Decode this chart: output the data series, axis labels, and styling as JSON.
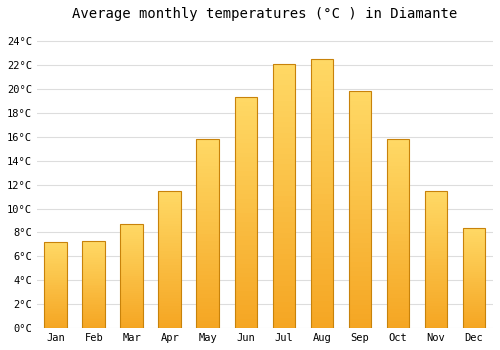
{
  "title": "Average monthly temperatures (°C ) in Diamante",
  "months": [
    "Jan",
    "Feb",
    "Mar",
    "Apr",
    "May",
    "Jun",
    "Jul",
    "Aug",
    "Sep",
    "Oct",
    "Nov",
    "Dec"
  ],
  "values": [
    7.2,
    7.3,
    8.7,
    11.5,
    15.8,
    19.3,
    22.1,
    22.5,
    19.8,
    15.8,
    11.5,
    8.4
  ],
  "bar_color_bottom": "#F5A623",
  "bar_color_top": "#FFD966",
  "bar_edge_color": "#C8820A",
  "background_color": "#FFFFFF",
  "grid_color": "#DDDDDD",
  "ytick_labels": [
    "0°C",
    "2°C",
    "4°C",
    "6°C",
    "8°C",
    "10°C",
    "12°C",
    "14°C",
    "16°C",
    "18°C",
    "20°C",
    "22°C",
    "24°C"
  ],
  "ytick_values": [
    0,
    2,
    4,
    6,
    8,
    10,
    12,
    14,
    16,
    18,
    20,
    22,
    24
  ],
  "ylim": [
    0,
    25
  ],
  "title_fontsize": 10,
  "tick_fontsize": 7.5,
  "font_family": "monospace"
}
